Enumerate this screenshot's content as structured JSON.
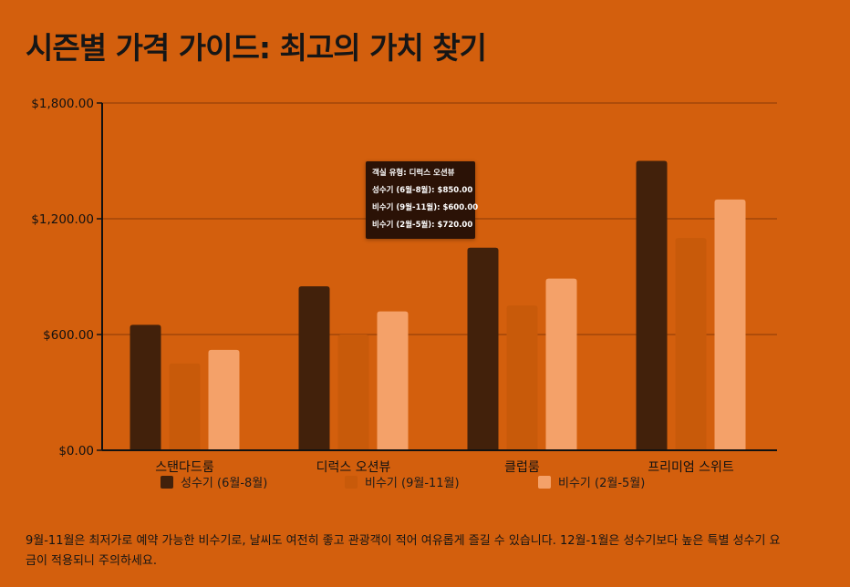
{
  "title": "시즌별 가격 가이드: 최고의 가치 찾기",
  "note": "9월-11월은 최저가로 예약 가능한 비수기로, 날씨도 여전히 좋고 관광객이 적어 여유롭게 즐길 수 있습니다. 12월-1월은 성수기보다 높은 특별 성수기 요금이 적용되니 주의하세요.",
  "tooltip": {
    "header": "객실 유형: 디럭스 오션뷰",
    "lines": [
      "성수기 (6월-8월): $850.00",
      "비수기 (9월-11월): $600.00",
      "비수기 (2월-5월): $720.00"
    ]
  },
  "chart_data": {
    "type": "bar",
    "title": "",
    "xlabel": "",
    "ylabel": "",
    "categories": [
      "스탠다드룸",
      "디럭스 오션뷰",
      "클럽룸",
      "프리미엄 스위트"
    ],
    "series": [
      {
        "name": "성수기 (6월-8월)",
        "color": "#42210b",
        "values": [
          650,
          850,
          1050,
          1500
        ]
      },
      {
        "name": "비수기 (9월-11월)",
        "color": "#c85a0a",
        "values": [
          450,
          600,
          750,
          1100
        ]
      },
      {
        "name": "비수기 (2월-5월)",
        "color": "#f4a169",
        "values": [
          520,
          720,
          890,
          1300
        ]
      }
    ],
    "ylim": [
      0,
      1800
    ],
    "yticks": [
      0,
      600,
      1200,
      1800
    ],
    "ytick_labels": [
      "$0.00",
      "$600.00",
      "$1,200.00",
      "$1,800.00"
    ],
    "grid": true,
    "legend_position": "bottom"
  }
}
